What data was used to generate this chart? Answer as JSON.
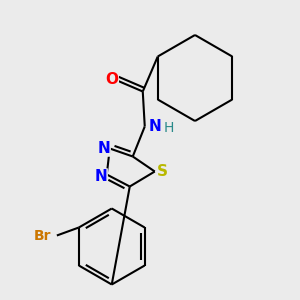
{
  "background_color": "#ebebeb",
  "bond_color": "#000000",
  "atom_colors": {
    "O": "#ff0000",
    "N": "#0000ff",
    "S": "#b8b800",
    "Br": "#cc7700",
    "C": "#000000",
    "H": "#2a8a8a"
  },
  "figsize": [
    3.0,
    3.0
  ],
  "dpi": 100
}
